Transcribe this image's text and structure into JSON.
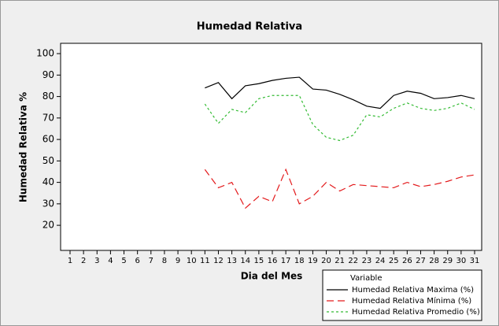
{
  "chart_data": {
    "type": "line",
    "title": "Humedad Relativa",
    "x_label": "Dia del Mes",
    "y_label": "Humedad Relativa %",
    "legend_title": "Variable",
    "legend": "bottom-right",
    "grid": false,
    "categories": [
      "1",
      "2",
      "3",
      "4",
      "5",
      "6",
      "7",
      "8",
      "9",
      "10",
      "11",
      "12",
      "13",
      "14",
      "15",
      "16",
      "17",
      "18",
      "19",
      "20",
      "21",
      "22",
      "23",
      "24",
      "25",
      "26",
      "27",
      "28",
      "29",
      "30",
      "31"
    ],
    "ylim": [
      8.3,
      104.8
    ],
    "yticks": [
      20,
      30,
      40,
      50,
      60,
      70,
      80,
      90,
      100
    ],
    "series": [
      {
        "name": "Humedad Relativa Maxima (%)",
        "color": "#000000",
        "dash": "solid",
        "values": [
          null,
          null,
          null,
          null,
          null,
          null,
          null,
          null,
          null,
          null,
          84,
          86.5,
          79,
          85,
          86,
          87.5,
          88.5,
          89,
          83.5,
          83,
          81,
          78.5,
          75.5,
          74.5,
          80.5,
          82.5,
          81.5,
          79,
          79.5,
          80.5,
          79
        ]
      },
      {
        "name": "Humedad Relativa Mínima (%)",
        "color": "#e31a1c",
        "dash": "dashed",
        "values": [
          null,
          null,
          null,
          null,
          null,
          null,
          null,
          null,
          null,
          null,
          46,
          37.5,
          40,
          28,
          33.5,
          31,
          46,
          30,
          33.5,
          40,
          36,
          39,
          38.5,
          38,
          37.5,
          40,
          38,
          39,
          40.5,
          42.5,
          43.5
        ]
      },
      {
        "name": "Humedad Relativa Promedio (%)",
        "color": "#33bb33",
        "dash": "dotted",
        "values": [
          null,
          null,
          null,
          null,
          null,
          null,
          null,
          null,
          null,
          null,
          76.5,
          67.5,
          74,
          72.5,
          79,
          80.5,
          80.5,
          80.5,
          67,
          61,
          59.5,
          62,
          71.5,
          70.5,
          74.5,
          77,
          74.5,
          73.5,
          74.5,
          77,
          74
        ]
      }
    ]
  }
}
